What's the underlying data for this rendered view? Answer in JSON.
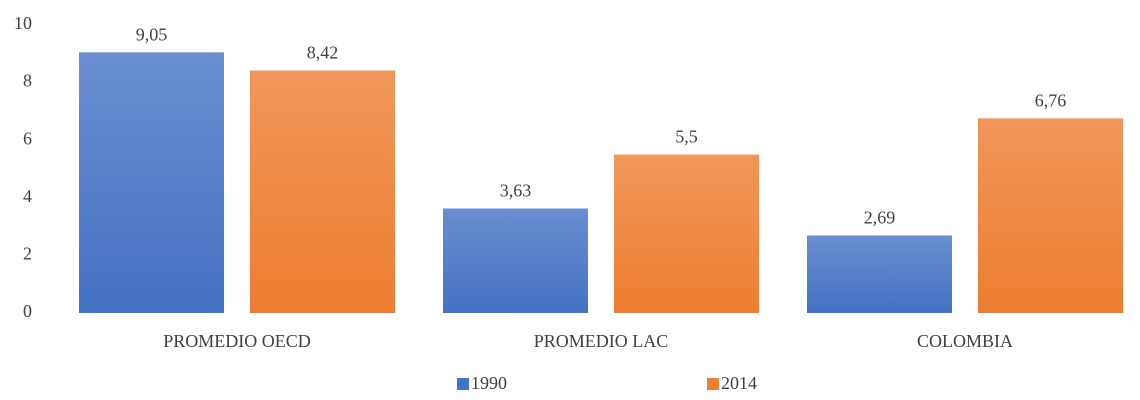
{
  "chart_data": {
    "type": "bar",
    "categories": [
      "PROMEDIO OECD",
      "PROMEDIO LAC",
      "COLOMBIA"
    ],
    "series": [
      {
        "name": "1990",
        "color": "#4472c4",
        "values": [
          9.05,
          3.63,
          2.69
        ],
        "value_labels": [
          "9,05",
          "3,63",
          "2,69"
        ]
      },
      {
        "name": "2014",
        "color": "#ed7d31",
        "values": [
          8.42,
          5.5,
          6.76
        ],
        "value_labels": [
          "8,42",
          "5,5",
          "6,76"
        ]
      }
    ],
    "ylim": [
      0,
      10
    ],
    "yticks": [
      0,
      2,
      4,
      6,
      8,
      10
    ],
    "grid": false,
    "legend": "bottom"
  }
}
